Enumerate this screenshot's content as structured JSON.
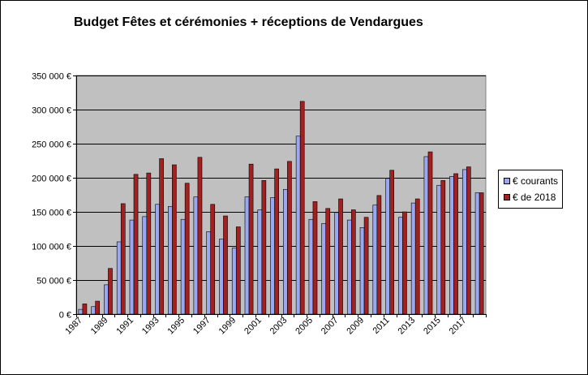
{
  "chart_data": {
    "type": "bar",
    "title": "Budget Fêtes et cérémonies + réceptions de Vendargues",
    "xlabel": "",
    "ylabel": "",
    "ylim": [
      0,
      350000
    ],
    "y_ticks": [
      0,
      50000,
      100000,
      150000,
      200000,
      250000,
      300000,
      350000
    ],
    "y_tick_labels": [
      "0 €",
      "50 000 €",
      "100 000 €",
      "150 000 €",
      "200 000 €",
      "250 000 €",
      "300 000 €",
      "350 000 €"
    ],
    "categories": [
      "1987",
      "1988",
      "1989",
      "1990",
      "1991",
      "1992",
      "1993",
      "1994",
      "1995",
      "1996",
      "1997",
      "1998",
      "1999",
      "2000",
      "2001",
      "2002",
      "2003",
      "2004",
      "2005",
      "2006",
      "2007",
      "2008",
      "2009",
      "2010",
      "2011",
      "2012",
      "2013",
      "2014",
      "2015",
      "2016",
      "2017",
      "2018"
    ],
    "x_tick_labels": [
      "1987",
      "1989",
      "1991",
      "1993",
      "1995",
      "1997",
      "1999",
      "2001",
      "2003",
      "2005",
      "2007",
      "2009",
      "2011",
      "2013",
      "2015",
      "2017"
    ],
    "grid": true,
    "legend_position": "right",
    "plot_background": "#c0c0c0",
    "series": [
      {
        "name": "€ courants",
        "color": "#99a8f0",
        "values": [
          7000,
          11000,
          43000,
          106000,
          138000,
          143000,
          161000,
          158000,
          139000,
          172000,
          121000,
          110000,
          97000,
          172000,
          153000,
          171000,
          183000,
          261000,
          139000,
          133000,
          149000,
          138000,
          127000,
          160000,
          199000,
          142000,
          163000,
          231000,
          189000,
          202000,
          212000,
          178000
        ]
      },
      {
        "name": "€ de 2018",
        "color": "#a32020",
        "values": [
          15000,
          19000,
          67000,
          162000,
          205000,
          207000,
          228000,
          219000,
          192000,
          230000,
          161000,
          144000,
          128000,
          220000,
          196000,
          213000,
          224000,
          312000,
          165000,
          155000,
          169000,
          153000,
          142000,
          174000,
          211000,
          150000,
          169000,
          238000,
          196000,
          206000,
          216000,
          178000
        ]
      }
    ]
  }
}
